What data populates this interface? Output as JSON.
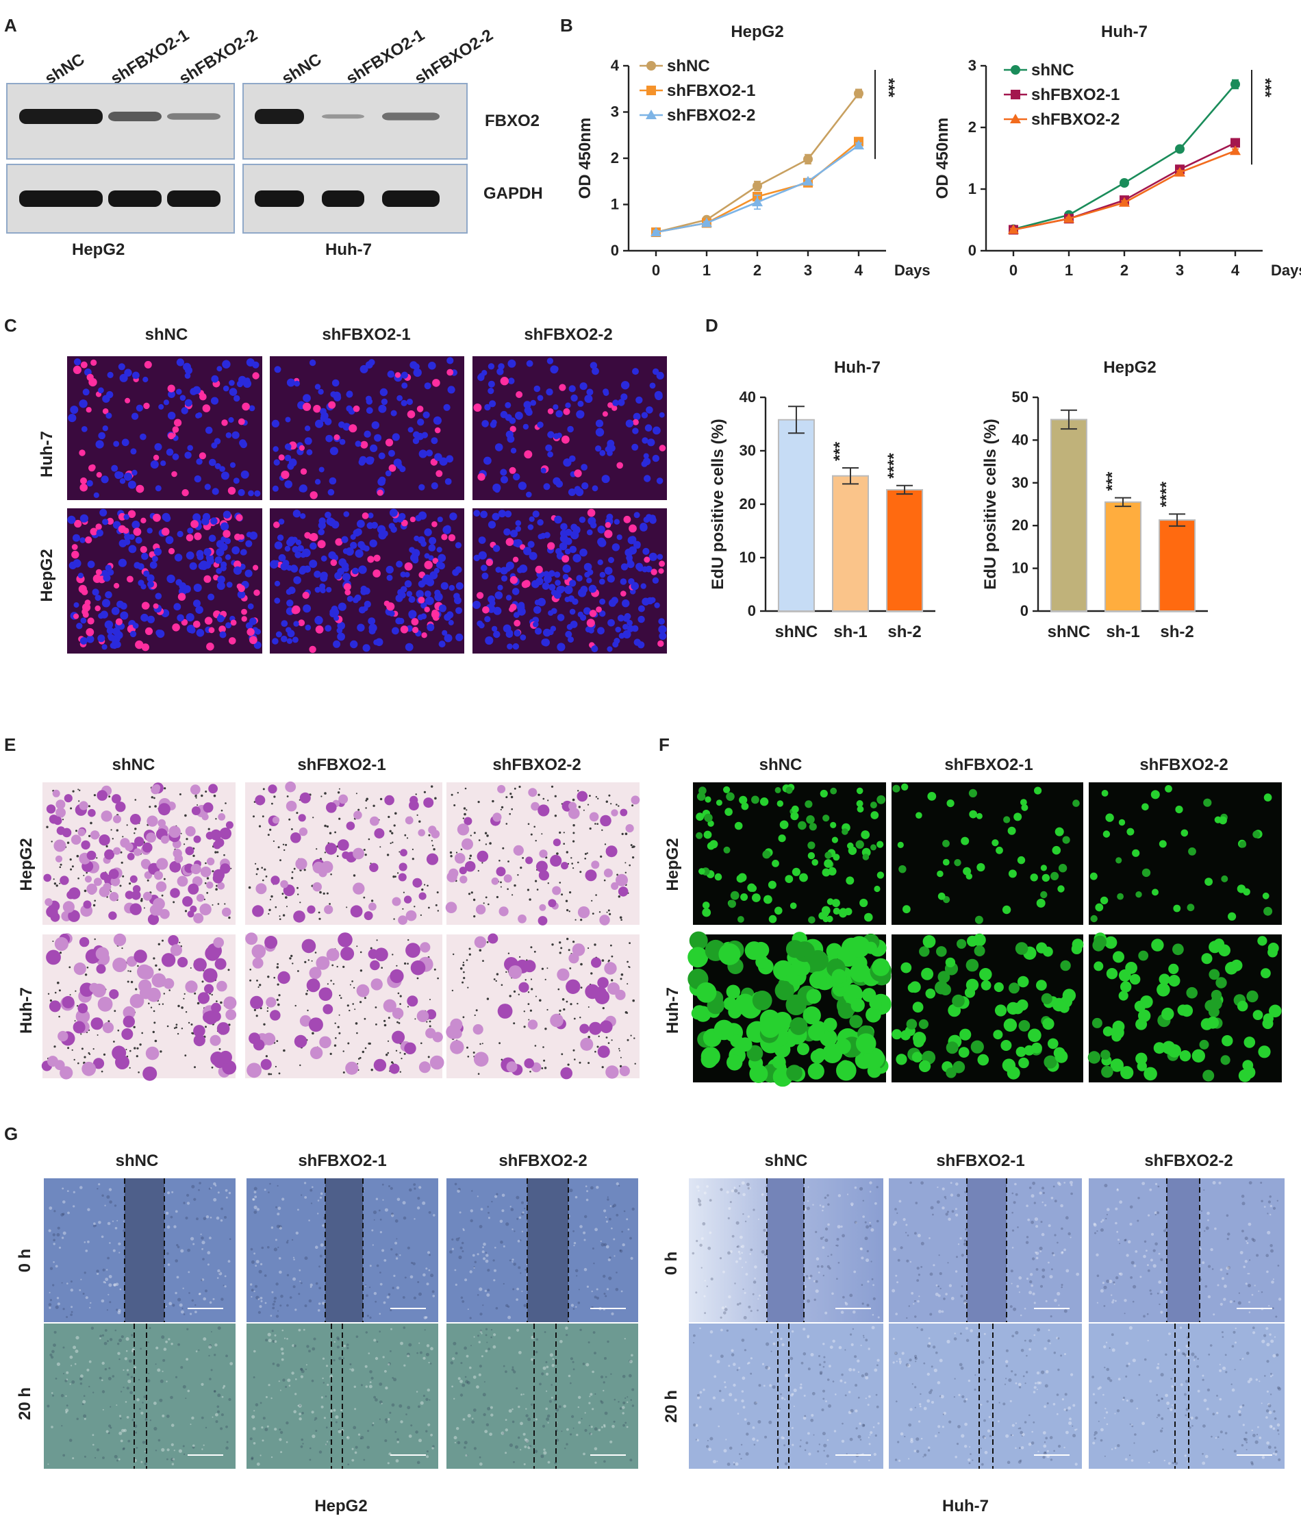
{
  "panel_letters": [
    "A",
    "B",
    "C",
    "D",
    "E",
    "F",
    "G"
  ],
  "groups": {
    "shNC": "shNC",
    "sh1": "shFBXO2-1",
    "sh2": "shFBXO2-2"
  },
  "cells": {
    "hepg2": "HepG2",
    "huh7": "Huh-7"
  },
  "western": {
    "targets": [
      "FBXO2",
      "GAPDH"
    ],
    "hepg2_levels": [
      1.0,
      0.55,
      0.3
    ],
    "huh7_levels": [
      1.0,
      0.12,
      0.4
    ]
  },
  "colors": {
    "cck_hepg2": [
      "#c8a060",
      "#f5922a",
      "#7db4e6"
    ],
    "cck_huh7": [
      "#1a8c5a",
      "#a3164e",
      "#f26b1d"
    ],
    "edu_huh7": [
      "#c6dcf5",
      "#fac48a",
      "#ff6a10"
    ],
    "edu_hepg2": [
      "#c0b27a",
      "#ffad3e",
      "#ff6a10"
    ],
    "edu_fluor_bg": "#3a0a3e",
    "edu_nuclei": "#2a2adc",
    "edu_pos": "#ff2ea0",
    "transwell_bg": "#f3e6ea",
    "transwell_cell": "#a449b4",
    "calcein_bg": "#050805",
    "calcein_cell": "#27d12f",
    "scratch_hepg2_0h": "#6f88bf",
    "scratch_hepg2_20h": "#6d9a92",
    "scratch_huh7_0h": "#94a7d6",
    "scratch_huh7_20h": "#9eb3dd"
  },
  "timepoints": [
    "0 h",
    "20 h"
  ],
  "chart_data": [
    {
      "type": "line",
      "title": "HepG2",
      "xlabel": "Days",
      "ylabel": "OD 450nm",
      "x": [
        0,
        1,
        2,
        3,
        4
      ],
      "ylim": [
        0,
        4
      ],
      "yticks": [
        0,
        1,
        2,
        3,
        4
      ],
      "series": [
        {
          "name": "shNC",
          "values": [
            0.4,
            0.67,
            1.4,
            1.98,
            3.4
          ],
          "err": [
            0.03,
            0.04,
            0.1,
            0.1,
            0.09
          ]
        },
        {
          "name": "shFBXO2-1",
          "values": [
            0.4,
            0.6,
            1.17,
            1.47,
            2.36
          ],
          "err": [
            0.03,
            0.03,
            0.08,
            0.06,
            0.05
          ]
        },
        {
          "name": "shFBXO2-2",
          "values": [
            0.4,
            0.6,
            1.05,
            1.5,
            2.28
          ],
          "err": [
            0.03,
            0.03,
            0.15,
            0.05,
            0.05
          ]
        }
      ],
      "annotation": "***"
    },
    {
      "type": "line",
      "title": "Huh-7",
      "xlabel": "Days",
      "ylabel": "OD 450nm",
      "x": [
        0,
        1,
        2,
        3,
        4
      ],
      "ylim": [
        0,
        3
      ],
      "yticks": [
        0,
        1,
        2,
        3
      ],
      "series": [
        {
          "name": "shNC",
          "values": [
            0.35,
            0.58,
            1.1,
            1.65,
            2.7
          ],
          "err": [
            0.02,
            0.02,
            0.03,
            0.03,
            0.07
          ]
        },
        {
          "name": "shFBXO2-1",
          "values": [
            0.34,
            0.52,
            0.82,
            1.32,
            1.75
          ],
          "err": [
            0.02,
            0.02,
            0.03,
            0.03,
            0.03
          ]
        },
        {
          "name": "shFBXO2-2",
          "values": [
            0.34,
            0.52,
            0.78,
            1.27,
            1.62
          ],
          "err": [
            0.02,
            0.02,
            0.03,
            0.03,
            0.03
          ]
        }
      ],
      "annotation": "***"
    },
    {
      "type": "bar",
      "title": "Huh-7",
      "xlabel": "",
      "ylabel": "EdU positive cells (%)",
      "categories": [
        "shNC",
        "sh-1",
        "sh-2"
      ],
      "values": [
        35.8,
        25.3,
        22.7
      ],
      "err": [
        2.5,
        1.5,
        0.8
      ],
      "ylim": [
        0,
        40
      ],
      "yticks": [
        0,
        10,
        20,
        30,
        40
      ],
      "annotations": [
        "",
        "***",
        "****"
      ]
    },
    {
      "type": "bar",
      "title": "HepG2",
      "xlabel": "",
      "ylabel": "EdU positive cells (%)",
      "categories": [
        "shNC",
        "sh-1",
        "sh-2"
      ],
      "values": [
        44.8,
        25.5,
        21.3
      ],
      "err": [
        2.2,
        1.0,
        1.4
      ],
      "ylim": [
        0,
        50
      ],
      "yticks": [
        0,
        10,
        20,
        30,
        40,
        50
      ],
      "annotations": [
        "",
        "***",
        "****"
      ]
    }
  ]
}
